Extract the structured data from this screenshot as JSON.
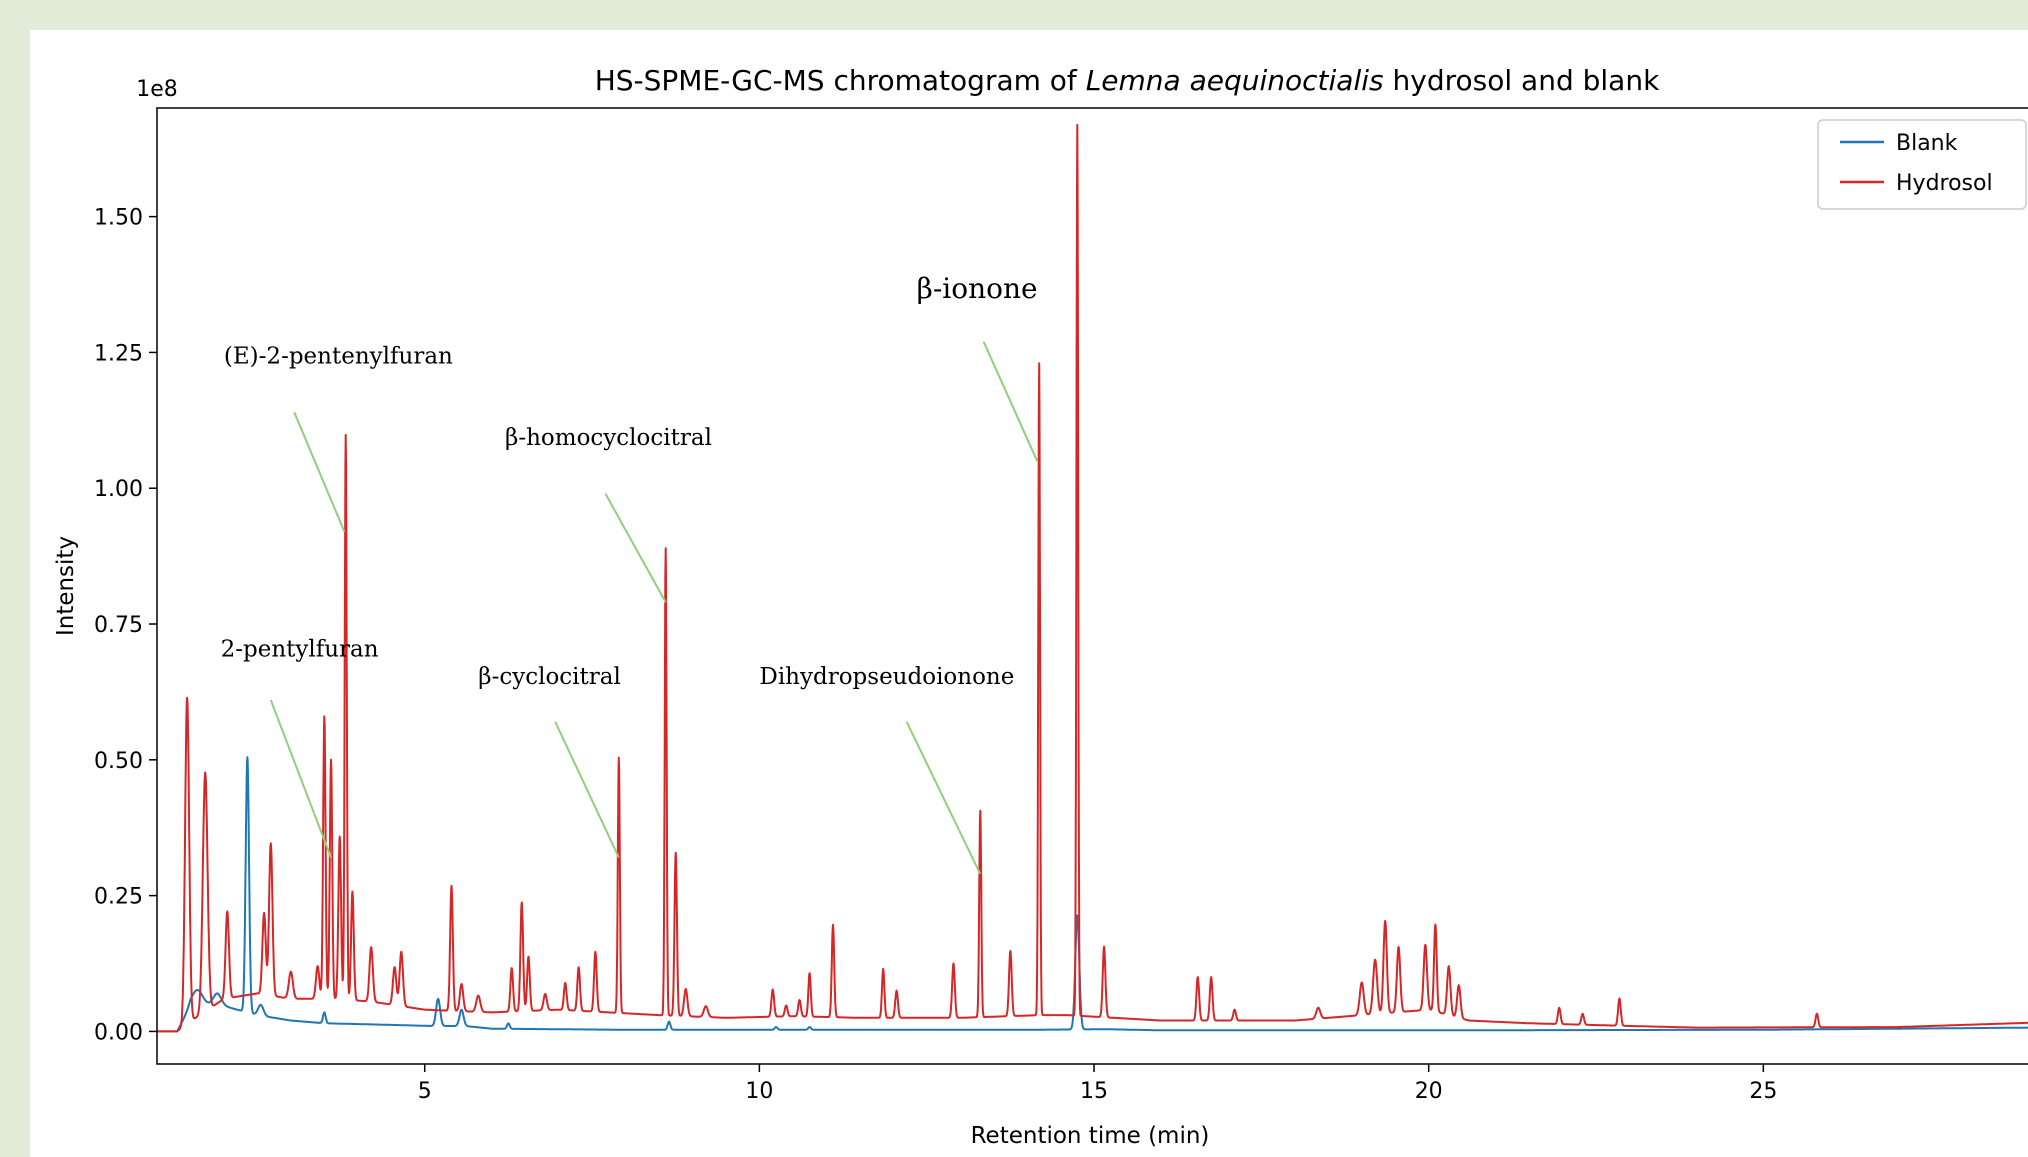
{
  "chart_data": {
    "type": "line",
    "title": {
      "prefix": "HS-SPME-GC-MS chromatogram of ",
      "italic": "Lemna aequinoctialis",
      "suffix": " hydrosol and blank"
    },
    "xlabel": "Retention time (min)",
    "ylabel": "Intensity",
    "y_multiplier": "1e8",
    "xlim": [
      1,
      30
    ],
    "ylim": [
      -0.06,
      1.7
    ],
    "xticks": [
      5,
      10,
      15,
      20,
      25,
      30
    ],
    "yticks": [
      0.0,
      0.25,
      0.5,
      0.75,
      1.0,
      1.25,
      1.5
    ],
    "ytick_labels": [
      "0.00",
      "0.25",
      "0.50",
      "0.75",
      "1.00",
      "1.25",
      "1.50"
    ],
    "grid": false,
    "legend_position": "top-right",
    "series": [
      {
        "name": "Blank",
        "color": "#1f77b4",
        "baseline": [
          [
            1.0,
            0.0
          ],
          [
            1.3,
            0.0
          ],
          [
            1.5,
            0.045
          ],
          [
            1.9,
            0.05
          ],
          [
            2.5,
            0.03
          ],
          [
            3.0,
            0.02
          ],
          [
            3.5,
            0.015
          ],
          [
            4.5,
            0.012
          ],
          [
            5.1,
            0.01
          ],
          [
            5.6,
            0.01
          ],
          [
            6.0,
            0.005
          ],
          [
            8.0,
            0.003
          ],
          [
            10.0,
            0.003
          ],
          [
            14.0,
            0.003
          ],
          [
            15.2,
            0.004
          ],
          [
            16.0,
            0.002
          ],
          [
            20.0,
            0.002
          ],
          [
            25.0,
            0.003
          ],
          [
            30.0,
            0.008
          ]
        ],
        "peaks": [
          [
            1.6,
            0.03,
            0.08
          ],
          [
            1.9,
            0.02,
            0.06
          ],
          [
            2.35,
            0.47,
            0.025
          ],
          [
            2.55,
            0.02,
            0.04
          ],
          [
            3.5,
            0.02,
            0.02
          ],
          [
            5.2,
            0.05,
            0.03
          ],
          [
            5.55,
            0.03,
            0.03
          ],
          [
            6.25,
            0.01,
            0.02
          ],
          [
            8.65,
            0.015,
            0.02
          ],
          [
            10.25,
            0.005,
            0.02
          ],
          [
            10.75,
            0.005,
            0.02
          ],
          [
            14.75,
            0.21,
            0.03
          ]
        ]
      },
      {
        "name": "Hydrosol",
        "color": "#d62728",
        "baseline": [
          [
            1.0,
            0.0
          ],
          [
            1.3,
            0.0
          ],
          [
            1.4,
            0.01
          ],
          [
            2.0,
            0.06
          ],
          [
            2.5,
            0.07
          ],
          [
            3.0,
            0.06
          ],
          [
            3.6,
            0.06
          ],
          [
            4.2,
            0.055
          ],
          [
            5.0,
            0.04
          ],
          [
            6.0,
            0.035
          ],
          [
            7.0,
            0.04
          ],
          [
            8.5,
            0.03
          ],
          [
            9.5,
            0.025
          ],
          [
            10.5,
            0.028
          ],
          [
            11.5,
            0.025
          ],
          [
            13.0,
            0.025
          ],
          [
            14.2,
            0.03
          ],
          [
            14.6,
            0.03
          ],
          [
            15.3,
            0.025
          ],
          [
            16.0,
            0.02
          ],
          [
            18.0,
            0.02
          ],
          [
            19.0,
            0.03
          ],
          [
            20.0,
            0.04
          ],
          [
            20.6,
            0.02
          ],
          [
            21.5,
            0.015
          ],
          [
            23.0,
            0.01
          ],
          [
            24.0,
            0.007
          ],
          [
            27.0,
            0.008
          ],
          [
            30.0,
            0.02
          ]
        ],
        "peaks": [
          [
            1.45,
            0.6,
            0.03
          ],
          [
            1.72,
            0.44,
            0.035
          ],
          [
            2.05,
            0.16,
            0.025
          ],
          [
            2.6,
            0.15,
            0.025
          ],
          [
            2.7,
            0.28,
            0.025
          ],
          [
            3.0,
            0.05,
            0.03
          ],
          [
            3.4,
            0.06,
            0.025
          ],
          [
            3.5,
            0.52,
            0.018
          ],
          [
            3.6,
            0.44,
            0.018
          ],
          [
            3.73,
            0.3,
            0.02
          ],
          [
            3.82,
            1.04,
            0.015
          ],
          [
            3.92,
            0.2,
            0.02
          ],
          [
            4.2,
            0.1,
            0.025
          ],
          [
            4.55,
            0.07,
            0.025
          ],
          [
            4.65,
            0.1,
            0.025
          ],
          [
            5.4,
            0.23,
            0.02
          ],
          [
            5.55,
            0.05,
            0.025
          ],
          [
            5.8,
            0.03,
            0.03
          ],
          [
            6.3,
            0.08,
            0.02
          ],
          [
            6.45,
            0.2,
            0.02
          ],
          [
            6.55,
            0.1,
            0.02
          ],
          [
            6.8,
            0.03,
            0.025
          ],
          [
            7.1,
            0.05,
            0.02
          ],
          [
            7.3,
            0.08,
            0.02
          ],
          [
            7.55,
            0.11,
            0.02
          ],
          [
            7.9,
            0.47,
            0.015
          ],
          [
            8.6,
            0.86,
            0.014
          ],
          [
            8.75,
            0.3,
            0.018
          ],
          [
            8.9,
            0.05,
            0.025
          ],
          [
            9.2,
            0.02,
            0.03
          ],
          [
            10.2,
            0.05,
            0.02
          ],
          [
            10.4,
            0.02,
            0.02
          ],
          [
            10.6,
            0.03,
            0.02
          ],
          [
            10.75,
            0.08,
            0.018
          ],
          [
            11.1,
            0.17,
            0.018
          ],
          [
            11.85,
            0.09,
            0.018
          ],
          [
            12.05,
            0.05,
            0.02
          ],
          [
            12.9,
            0.1,
            0.02
          ],
          [
            13.3,
            0.38,
            0.015
          ],
          [
            13.75,
            0.12,
            0.02
          ],
          [
            14.18,
            1.2,
            0.013
          ],
          [
            14.75,
            1.64,
            0.013
          ],
          [
            15.15,
            0.13,
            0.02
          ],
          [
            16.55,
            0.08,
            0.02
          ],
          [
            16.75,
            0.08,
            0.02
          ],
          [
            17.1,
            0.02,
            0.02
          ],
          [
            18.35,
            0.02,
            0.03
          ],
          [
            19.0,
            0.06,
            0.03
          ],
          [
            19.2,
            0.1,
            0.03
          ],
          [
            19.35,
            0.17,
            0.025
          ],
          [
            19.55,
            0.12,
            0.025
          ],
          [
            19.95,
            0.12,
            0.025
          ],
          [
            20.1,
            0.16,
            0.02
          ],
          [
            20.3,
            0.09,
            0.025
          ],
          [
            20.45,
            0.06,
            0.025
          ],
          [
            21.95,
            0.03,
            0.02
          ],
          [
            22.3,
            0.02,
            0.02
          ],
          [
            22.85,
            0.05,
            0.02
          ],
          [
            25.8,
            0.025,
            0.02
          ]
        ]
      }
    ],
    "annotations": [
      {
        "text": "(E)-2-pentenylfuran",
        "text_x": 2.0,
        "text_y": 1.23,
        "line": [
          [
            3.05,
            1.14
          ],
          [
            3.8,
            0.92
          ]
        ],
        "size": "normal"
      },
      {
        "text": "β-homocyclocitral",
        "text_x": 6.2,
        "text_y": 1.08,
        "line": [
          [
            7.7,
            0.99
          ],
          [
            8.6,
            0.79
          ]
        ],
        "size": "normal"
      },
      {
        "text": "β-ionone",
        "text_x": 12.35,
        "text_y": 1.35,
        "line": [
          [
            13.35,
            1.27
          ],
          [
            14.15,
            1.05
          ]
        ],
        "size": "big"
      },
      {
        "text": "2-pentylfuran",
        "text_x": 1.95,
        "text_y": 0.69,
        "line": [
          [
            2.7,
            0.61
          ],
          [
            3.6,
            0.32
          ]
        ],
        "size": "normal"
      },
      {
        "text": "β-cyclocitral",
        "text_x": 5.8,
        "text_y": 0.64,
        "line": [
          [
            6.95,
            0.57
          ],
          [
            7.9,
            0.32
          ]
        ],
        "size": "normal"
      },
      {
        "text": "Dihydropseudoionone",
        "text_x": 10.0,
        "text_y": 0.64,
        "line": [
          [
            12.2,
            0.57
          ],
          [
            13.3,
            0.29
          ]
        ],
        "size": "normal"
      }
    ],
    "annotation_line_color": "#8fd07a"
  }
}
